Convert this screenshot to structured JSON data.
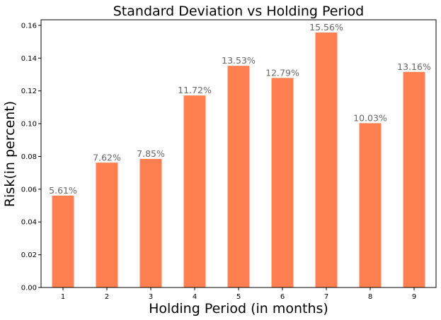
{
  "chart_data": {
    "type": "bar",
    "title": "Standard Deviation vs Holding Period",
    "xlabel": "Holding Period (in months)",
    "ylabel": "Risk(in percent)",
    "categories": [
      "1",
      "2",
      "3",
      "4",
      "5",
      "6",
      "7",
      "8",
      "9"
    ],
    "values": [
      0.0561,
      0.0762,
      0.0785,
      0.1172,
      0.1353,
      0.1279,
      0.1556,
      0.1003,
      0.1316
    ],
    "data_labels": [
      "5.61%",
      "7.62%",
      "7.85%",
      "11.72%",
      "13.53%",
      "12.79%",
      "15.56%",
      "10.03%",
      "13.16%"
    ],
    "ylim": [
      0,
      0.1634
    ],
    "yticks": [
      "0.00",
      "0.02",
      "0.04",
      "0.06",
      "0.08",
      "0.10",
      "0.12",
      "0.14",
      "0.16"
    ],
    "grid": false,
    "bar_color": "#ff7f50"
  }
}
